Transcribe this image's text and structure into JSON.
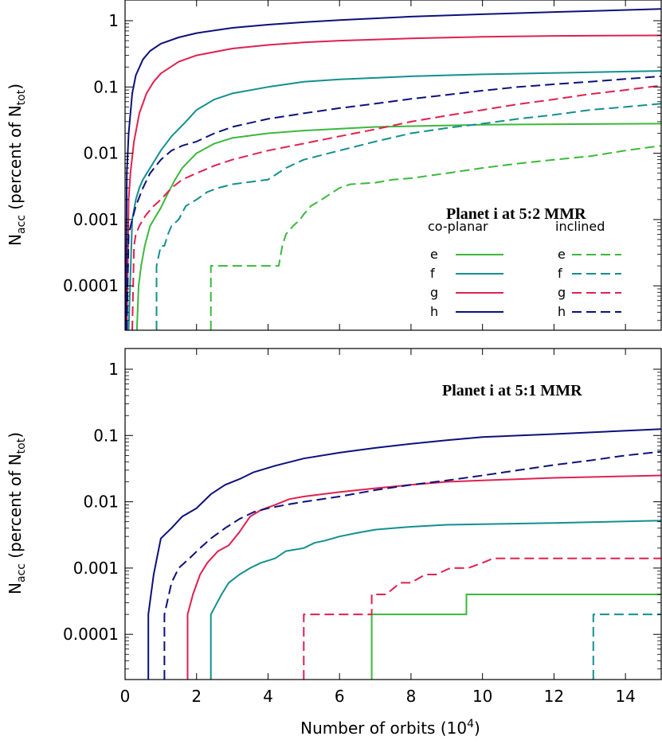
{
  "colors": {
    "e": "#3bb83b",
    "f": "#138f8f",
    "g": "#e0204f",
    "h": "#0c107a"
  },
  "chart_data": [
    {
      "type": "line",
      "title": "Planet i at 5:2 MMR",
      "xlabel": "",
      "ylabel": "N_acc (percent of N_tot)",
      "ylabel_main": "N",
      "ylabel_sub": "acc",
      "ylabel_rest": " (percent of N",
      "ylabel_sub2": "tot",
      "ylabel_close": ")",
      "xlim": [
        0,
        15
      ],
      "ylim": [
        2e-05,
        2
      ],
      "yscale": "log",
      "xticks": [
        "0",
        "2",
        "4",
        "6",
        "8",
        "10",
        "12",
        "14"
      ],
      "yticks": [
        "0.0001",
        "0.001",
        "0.01",
        "0.1",
        "1"
      ],
      "legend": {
        "placement": "right",
        "header_coplanar": "co-planar",
        "header_inclined": "inclined",
        "labels": [
          "e",
          "f",
          "g",
          "h"
        ]
      },
      "series": [
        {
          "name": "e",
          "group": "co-planar",
          "style": "solid",
          "x": [
            0.33,
            0.38,
            0.45,
            0.55,
            0.7,
            0.85,
            1.0,
            1.2,
            1.4,
            1.6,
            2.0,
            2.5,
            3.0,
            4.0,
            5.0,
            7.0,
            10.0,
            15.0
          ],
          "y": [
            2e-05,
            0.0001,
            0.0002,
            0.0004,
            0.0008,
            0.0011,
            0.0015,
            0.0025,
            0.004,
            0.006,
            0.01,
            0.014,
            0.017,
            0.02,
            0.022,
            0.025,
            0.027,
            0.028
          ]
        },
        {
          "name": "f",
          "group": "co-planar",
          "style": "solid",
          "x": [
            0.1,
            0.2,
            0.3,
            0.4,
            0.5,
            0.7,
            1.0,
            1.3,
            1.7,
            2.0,
            2.5,
            3.0,
            4.0,
            5.0,
            6.0,
            8.0,
            10.0,
            15.0
          ],
          "y": [
            2e-05,
            0.001,
            0.002,
            0.003,
            0.004,
            0.006,
            0.011,
            0.018,
            0.03,
            0.045,
            0.065,
            0.08,
            0.1,
            0.12,
            0.13,
            0.145,
            0.155,
            0.175
          ]
        },
        {
          "name": "g",
          "group": "co-planar",
          "style": "solid",
          "x": [
            0.05,
            0.1,
            0.15,
            0.25,
            0.4,
            0.6,
            0.8,
            1.0,
            1.5,
            2.0,
            3.0,
            4.0,
            5.0,
            6.0,
            8.0,
            10.0,
            12.0,
            15.0
          ],
          "y": [
            2e-05,
            0.002,
            0.005,
            0.015,
            0.04,
            0.08,
            0.12,
            0.16,
            0.24,
            0.3,
            0.38,
            0.43,
            0.47,
            0.5,
            0.54,
            0.57,
            0.59,
            0.6
          ]
        },
        {
          "name": "h",
          "group": "co-planar",
          "style": "solid",
          "x": [
            0.02,
            0.05,
            0.1,
            0.2,
            0.3,
            0.5,
            0.7,
            1.0,
            1.5,
            2.0,
            3.0,
            4.0,
            5.0,
            6.0,
            8.0,
            10.0,
            12.0,
            15.0
          ],
          "y": [
            2e-05,
            0.005,
            0.02,
            0.08,
            0.15,
            0.26,
            0.35,
            0.45,
            0.56,
            0.65,
            0.78,
            0.87,
            0.95,
            1.02,
            1.15,
            1.25,
            1.35,
            1.5
          ]
        },
        {
          "name": "e",
          "group": "inclined",
          "style": "dashed",
          "x": [
            2.4,
            2.4,
            4.3,
            4.4,
            4.5,
            4.7,
            4.9,
            5.0,
            5.2,
            5.5,
            6.0,
            6.3,
            7.0,
            7.5,
            8.0,
            9.0,
            10.0,
            11.0,
            12.0,
            13.0,
            14.0,
            15.0
          ],
          "y": [
            2e-05,
            0.0002,
            0.0002,
            0.0004,
            0.0006,
            0.0008,
            0.001,
            0.0012,
            0.0016,
            0.002,
            0.003,
            0.0034,
            0.0036,
            0.004,
            0.0042,
            0.005,
            0.006,
            0.007,
            0.008,
            0.009,
            0.011,
            0.013
          ]
        },
        {
          "name": "f",
          "group": "inclined",
          "style": "dashed",
          "x": [
            0.88,
            0.88,
            1.0,
            1.1,
            1.2,
            1.3,
            1.5,
            1.7,
            2.0,
            2.3,
            2.6,
            3.0,
            4.0,
            4.5,
            5.0,
            6.0,
            7.0,
            8.0,
            9.0,
            10.0,
            11.0,
            12.0,
            13.0,
            14.0,
            15.0
          ],
          "y": [
            2e-05,
            0.0002,
            0.0004,
            0.0004,
            0.0006,
            0.0008,
            0.001,
            0.0016,
            0.002,
            0.0026,
            0.003,
            0.0034,
            0.004,
            0.006,
            0.008,
            0.011,
            0.015,
            0.02,
            0.024,
            0.028,
            0.033,
            0.038,
            0.045,
            0.05,
            0.056
          ]
        },
        {
          "name": "g",
          "group": "inclined",
          "style": "dashed",
          "x": [
            0.2,
            0.25,
            0.3,
            0.4,
            0.5,
            0.6,
            0.8,
            1.0,
            1.3,
            1.6,
            2.0,
            2.5,
            3.0,
            4.0,
            5.0,
            6.0,
            7.0,
            8.0,
            9.0,
            10.0,
            11.0,
            12.0,
            13.0,
            14.0,
            15.0
          ],
          "y": [
            2e-05,
            0.0004,
            0.0006,
            0.0008,
            0.001,
            0.0012,
            0.0016,
            0.002,
            0.003,
            0.004,
            0.005,
            0.0065,
            0.008,
            0.011,
            0.014,
            0.018,
            0.023,
            0.03,
            0.037,
            0.045,
            0.055,
            0.065,
            0.078,
            0.09,
            0.105
          ]
        },
        {
          "name": "h",
          "group": "inclined",
          "style": "dashed",
          "x": [
            0.05,
            0.1,
            0.2,
            0.3,
            0.5,
            0.7,
            1.0,
            1.3,
            1.6,
            2.0,
            2.5,
            3.0,
            4.0,
            5.0,
            6.0,
            7.0,
            8.0,
            9.0,
            10.0,
            11.0,
            12.0,
            13.0,
            14.0,
            15.0
          ],
          "y": [
            2e-05,
            0.0006,
            0.001,
            0.0016,
            0.003,
            0.005,
            0.008,
            0.011,
            0.013,
            0.015,
            0.02,
            0.025,
            0.033,
            0.04,
            0.048,
            0.056,
            0.066,
            0.076,
            0.088,
            0.1,
            0.11,
            0.12,
            0.132,
            0.145
          ]
        }
      ]
    },
    {
      "type": "line",
      "title": "Planet i at 5:1 MMR",
      "xlabel": "Number of orbits (10^4)",
      "xlabel_main": "Number of orbits (10",
      "xlabel_sup": "4",
      "xlabel_close": ")",
      "ylabel": "N_acc (percent of N_tot)",
      "ylabel_main": "N",
      "ylabel_sub": "acc",
      "ylabel_rest": " (percent of N",
      "ylabel_sub2": "tot",
      "ylabel_close": ")",
      "xlim": [
        0,
        15
      ],
      "ylim": [
        2e-05,
        2
      ],
      "yscale": "log",
      "xticks": [
        "0",
        "2",
        "4",
        "6",
        "8",
        "10",
        "12",
        "14"
      ],
      "yticks": [
        "0.0001",
        "0.001",
        "0.01",
        "0.1",
        "1"
      ],
      "series": [
        {
          "name": "e",
          "group": "co-planar",
          "style": "solid",
          "x": [
            6.9,
            6.9,
            9.55,
            9.55,
            15.0
          ],
          "y": [
            2e-05,
            0.0002,
            0.0002,
            0.0004,
            0.0004
          ]
        },
        {
          "name": "f",
          "group": "co-planar",
          "style": "solid",
          "x": [
            2.4,
            2.4,
            2.7,
            2.9,
            3.2,
            3.5,
            3.8,
            4.2,
            4.5,
            5.0,
            5.3,
            5.6,
            6.0,
            6.5,
            7.0,
            7.5,
            8.0,
            9.0,
            10.0,
            12.0,
            15.0
          ],
          "y": [
            2e-05,
            0.0002,
            0.0004,
            0.0006,
            0.0008,
            0.001,
            0.0012,
            0.0014,
            0.0018,
            0.002,
            0.0024,
            0.0026,
            0.003,
            0.0034,
            0.0038,
            0.004,
            0.0042,
            0.0045,
            0.0046,
            0.0048,
            0.0052
          ]
        },
        {
          "name": "g",
          "group": "co-planar",
          "style": "solid",
          "x": [
            1.75,
            1.75,
            1.9,
            2.1,
            2.3,
            2.6,
            2.9,
            3.2,
            3.5,
            3.8,
            4.2,
            4.6,
            5.0,
            6.0,
            7.0,
            8.0,
            9.0,
            10.0,
            12.0,
            15.0
          ],
          "y": [
            2e-05,
            0.0002,
            0.0004,
            0.0008,
            0.0012,
            0.0018,
            0.0022,
            0.0035,
            0.006,
            0.0075,
            0.009,
            0.011,
            0.012,
            0.014,
            0.016,
            0.018,
            0.02,
            0.021,
            0.023,
            0.025
          ]
        },
        {
          "name": "h",
          "group": "co-planar",
          "style": "solid",
          "x": [
            0.65,
            0.65,
            0.8,
            1.0,
            1.3,
            1.6,
            2.0,
            2.4,
            2.8,
            3.2,
            3.6,
            4.2,
            5.0,
            6.0,
            7.0,
            8.0,
            9.0,
            10.0,
            12.0,
            15.0
          ],
          "y": [
            2e-05,
            0.0002,
            0.0008,
            0.0028,
            0.004,
            0.006,
            0.008,
            0.013,
            0.018,
            0.022,
            0.028,
            0.035,
            0.045,
            0.055,
            0.065,
            0.075,
            0.085,
            0.095,
            0.105,
            0.125
          ]
        },
        {
          "name": "e",
          "group": "inclined",
          "style": "dashed",
          "x": [],
          "y": []
        },
        {
          "name": "f",
          "group": "inclined",
          "style": "dashed",
          "x": [
            13.1,
            13.1,
            15.0
          ],
          "y": [
            2e-05,
            0.0002,
            0.0002
          ]
        },
        {
          "name": "g",
          "group": "inclined",
          "style": "dashed",
          "x": [
            5.0,
            5.0,
            6.9,
            6.9,
            7.3,
            7.7,
            8.0,
            8.4,
            8.7,
            9.1,
            9.6,
            10.0,
            10.3,
            11.0,
            12.0,
            15.0
          ],
          "y": [
            2e-05,
            0.0002,
            0.0002,
            0.0004,
            0.0004,
            0.0006,
            0.0006,
            0.0008,
            0.0008,
            0.001,
            0.001,
            0.0012,
            0.0014,
            0.0014,
            0.0014,
            0.0014
          ]
        },
        {
          "name": "h",
          "group": "inclined",
          "style": "dashed",
          "x": [
            1.1,
            1.1,
            1.3,
            1.5,
            1.8,
            2.1,
            2.4,
            2.8,
            3.2,
            3.6,
            4.0,
            4.5,
            5.0,
            6.0,
            7.0,
            8.0,
            9.0,
            10.0,
            11.0,
            12.0,
            13.0,
            14.0,
            15.0
          ],
          "y": [
            2e-05,
            0.0002,
            0.0006,
            0.001,
            0.0014,
            0.002,
            0.0028,
            0.004,
            0.0055,
            0.007,
            0.008,
            0.009,
            0.01,
            0.012,
            0.015,
            0.018,
            0.021,
            0.025,
            0.03,
            0.036,
            0.042,
            0.05,
            0.057
          ]
        }
      ]
    }
  ]
}
